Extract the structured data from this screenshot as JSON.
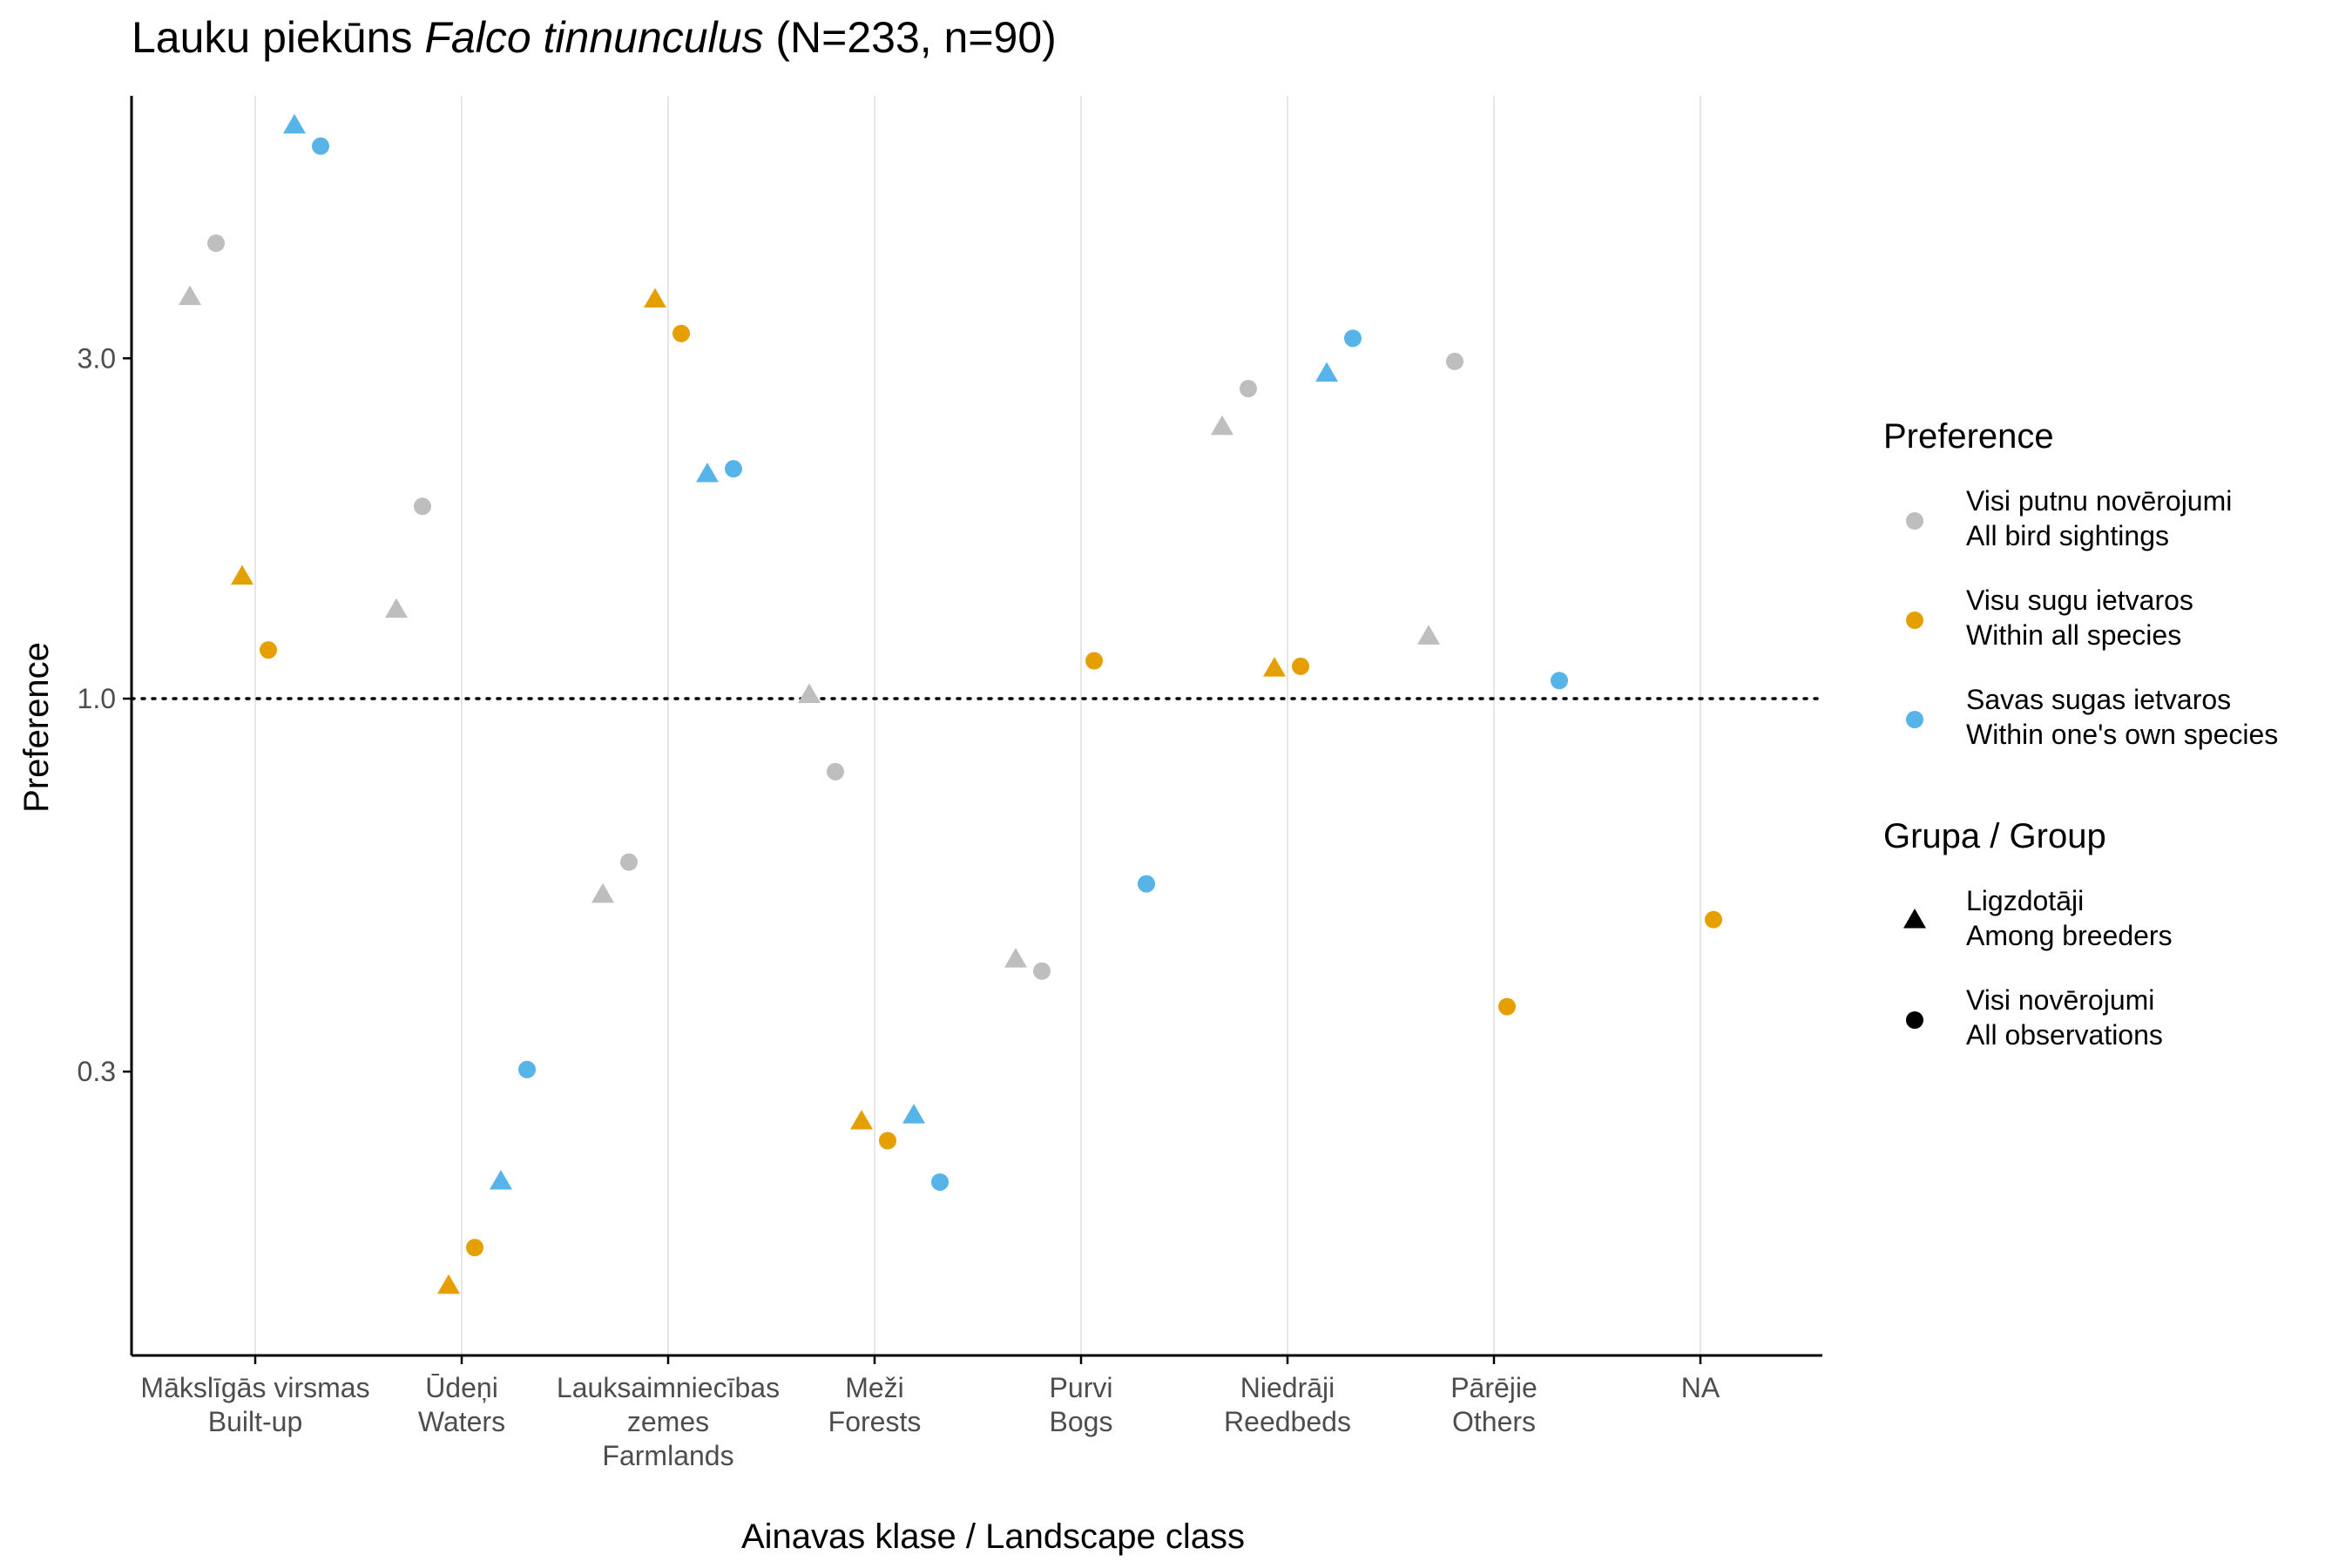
{
  "chart_data": {
    "type": "scatter",
    "title": {
      "prefix": "Lauku piekūns ",
      "species": "Falco tinnunculus",
      "suffix": " (N=233, n=90)"
    },
    "xlabel": "Ainavas klase / Landscape class",
    "ylabel": "Preference",
    "y_scale": "log",
    "ylim": [
      0.12,
      7.0
    ],
    "y_ticks": [
      {
        "value": 0.3,
        "label": "0.3"
      },
      {
        "value": 1.0,
        "label": "1.0"
      },
      {
        "value": 3.0,
        "label": "3.0"
      }
    ],
    "reference_line": {
      "value": 1.0,
      "style": "dotted"
    },
    "grid": {
      "vertical": true,
      "horizontal": false
    },
    "categories": [
      {
        "lines": [
          "Mākslīgās virsmas",
          "Built-up"
        ]
      },
      {
        "lines": [
          "Ūdeņi",
          "Waters"
        ]
      },
      {
        "lines": [
          "Lauksaimniecības",
          "zemes",
          "Farmlands"
        ]
      },
      {
        "lines": [
          "Meži",
          "Forests"
        ]
      },
      {
        "lines": [
          "Purvi",
          "Bogs"
        ]
      },
      {
        "lines": [
          "Niedrāji",
          "Reedbeds"
        ]
      },
      {
        "lines": [
          "Pārējie",
          "Others"
        ]
      },
      {
        "lines": [
          "NA"
        ]
      }
    ],
    "legend": {
      "position": "right",
      "preference": {
        "title": "Preference",
        "items": [
          {
            "key": "all_sightings",
            "lines": [
              "Visi putnu novērojumi",
              "All bird sightings"
            ],
            "color": "#bebebe"
          },
          {
            "key": "all_species",
            "lines": [
              "Visu sugu ietvaros",
              "Within all species"
            ],
            "color": "#e69f00"
          },
          {
            "key": "own_species",
            "lines": [
              "Savas sugas ietvaros",
              "Within one's own species"
            ],
            "color": "#56b4e9"
          }
        ]
      },
      "group": {
        "title": "Grupa / Group",
        "items": [
          {
            "key": "breeders",
            "shape": "triangle",
            "lines": [
              "Ligzdotāji",
              "Among breeders"
            ]
          },
          {
            "key": "all_obs",
            "shape": "circle",
            "lines": [
              "Visi novērojumi",
              "All observations"
            ]
          }
        ]
      }
    },
    "points": [
      {
        "category": 0,
        "pref": "all_sightings",
        "group": "breeders",
        "y": 3.65
      },
      {
        "category": 0,
        "pref": "all_sightings",
        "group": "all_obs",
        "y": 4.35
      },
      {
        "category": 0,
        "pref": "all_species",
        "group": "breeders",
        "y": 1.48
      },
      {
        "category": 0,
        "pref": "all_species",
        "group": "all_obs",
        "y": 1.17
      },
      {
        "category": 0,
        "pref": "own_species",
        "group": "breeders",
        "y": 6.35
      },
      {
        "category": 0,
        "pref": "own_species",
        "group": "all_obs",
        "y": 5.95
      },
      {
        "category": 1,
        "pref": "all_sightings",
        "group": "breeders",
        "y": 1.33
      },
      {
        "category": 1,
        "pref": "all_sightings",
        "group": "all_obs",
        "y": 1.86
      },
      {
        "category": 1,
        "pref": "all_species",
        "group": "breeders",
        "y": 0.15
      },
      {
        "category": 1,
        "pref": "all_species",
        "group": "all_obs",
        "y": 0.17
      },
      {
        "category": 1,
        "pref": "own_species",
        "group": "breeders",
        "y": 0.21
      },
      {
        "category": 1,
        "pref": "own_species",
        "group": "all_obs",
        "y": 0.302
      },
      {
        "category": 2,
        "pref": "all_sightings",
        "group": "breeders",
        "y": 0.53
      },
      {
        "category": 2,
        "pref": "all_sightings",
        "group": "all_obs",
        "y": 0.59
      },
      {
        "category": 2,
        "pref": "all_species",
        "group": "breeders",
        "y": 3.62
      },
      {
        "category": 2,
        "pref": "all_species",
        "group": "all_obs",
        "y": 3.25
      },
      {
        "category": 2,
        "pref": "own_species",
        "group": "breeders",
        "y": 2.06
      },
      {
        "category": 2,
        "pref": "own_species",
        "group": "all_obs",
        "y": 2.1
      },
      {
        "category": 3,
        "pref": "all_sightings",
        "group": "breeders",
        "y": 1.01
      },
      {
        "category": 3,
        "pref": "all_sightings",
        "group": "all_obs",
        "y": 0.79
      },
      {
        "category": 3,
        "pref": "all_species",
        "group": "breeders",
        "y": 0.255
      },
      {
        "category": 3,
        "pref": "all_species",
        "group": "all_obs",
        "y": 0.24
      },
      {
        "category": 3,
        "pref": "own_species",
        "group": "breeders",
        "y": 0.26
      },
      {
        "category": 3,
        "pref": "own_species",
        "group": "all_obs",
        "y": 0.21
      },
      {
        "category": 4,
        "pref": "all_sightings",
        "group": "breeders",
        "y": 0.43
      },
      {
        "category": 4,
        "pref": "all_sightings",
        "group": "all_obs",
        "y": 0.415
      },
      {
        "category": 4,
        "pref": "all_species",
        "group": "all_obs",
        "y": 1.13
      },
      {
        "category": 4,
        "pref": "own_species",
        "group": "all_obs",
        "y": 0.55
      },
      {
        "category": 5,
        "pref": "all_sightings",
        "group": "breeders",
        "y": 2.4
      },
      {
        "category": 5,
        "pref": "all_sightings",
        "group": "all_obs",
        "y": 2.72
      },
      {
        "category": 5,
        "pref": "all_species",
        "group": "breeders",
        "y": 1.1
      },
      {
        "category": 5,
        "pref": "all_species",
        "group": "all_obs",
        "y": 1.11
      },
      {
        "category": 5,
        "pref": "own_species",
        "group": "breeders",
        "y": 2.85
      },
      {
        "category": 5,
        "pref": "own_species",
        "group": "all_obs",
        "y": 3.2
      },
      {
        "category": 6,
        "pref": "all_sightings",
        "group": "breeders",
        "y": 1.22
      },
      {
        "category": 6,
        "pref": "all_sightings",
        "group": "all_obs",
        "y": 2.97
      },
      {
        "category": 6,
        "pref": "all_species",
        "group": "all_obs",
        "y": 0.37
      },
      {
        "category": 6,
        "pref": "own_species",
        "group": "all_obs",
        "y": 1.06
      },
      {
        "category": 7,
        "pref": "all_species",
        "group": "all_obs",
        "y": 0.49
      }
    ]
  }
}
